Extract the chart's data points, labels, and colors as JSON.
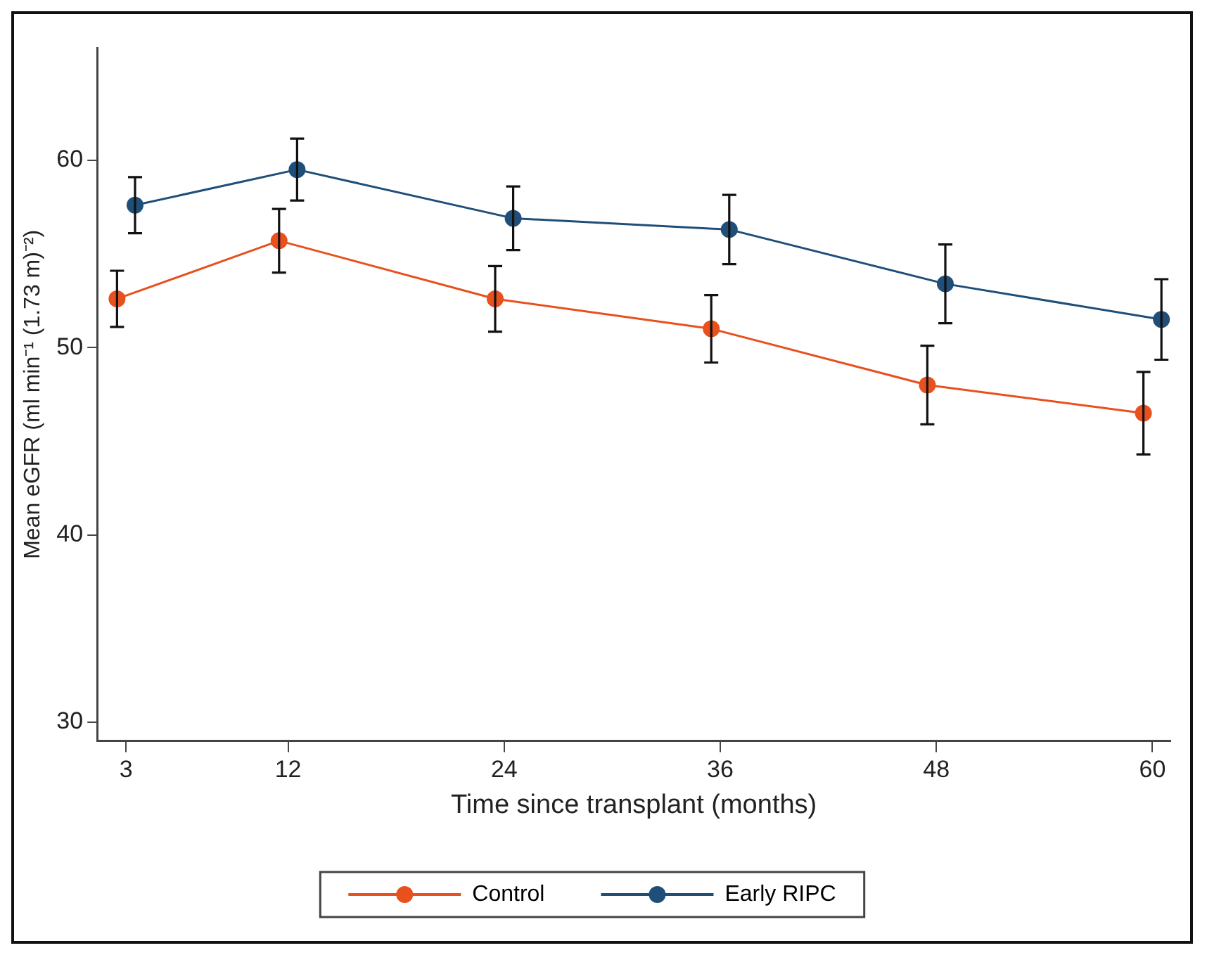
{
  "chart_data": {
    "type": "line",
    "xlabel": "Time since transplant (months)",
    "ylabel": "Mean eGFR (ml min⁻¹ (1.73 m)⁻²)",
    "xlim": [
      1.4,
      61
    ],
    "xticks": [
      3,
      12,
      24,
      36,
      48,
      60
    ],
    "ylim": [
      29,
      66
    ],
    "yticks": [
      30,
      40,
      50,
      60
    ],
    "grid": false,
    "legend": "bottom",
    "marker": "circle",
    "line_style": "solid",
    "series": [
      {
        "name": "Control",
        "color": "#e8501e",
        "x": [
          2.5,
          11.5,
          23.5,
          35.5,
          47.5,
          59.5
        ],
        "values": [
          52.6,
          55.7,
          52.6,
          51.0,
          48.0,
          46.5
        ],
        "errors": [
          1.5,
          1.7,
          1.75,
          1.8,
          2.1,
          2.2
        ]
      },
      {
        "name": "Early RIPC",
        "color": "#1f4e79",
        "x": [
          3.5,
          12.5,
          24.5,
          36.5,
          48.5,
          60.5
        ],
        "values": [
          57.6,
          59.5,
          56.9,
          56.3,
          53.4,
          51.5
        ],
        "errors": [
          1.5,
          1.65,
          1.7,
          1.85,
          2.1,
          2.15
        ]
      }
    ]
  }
}
